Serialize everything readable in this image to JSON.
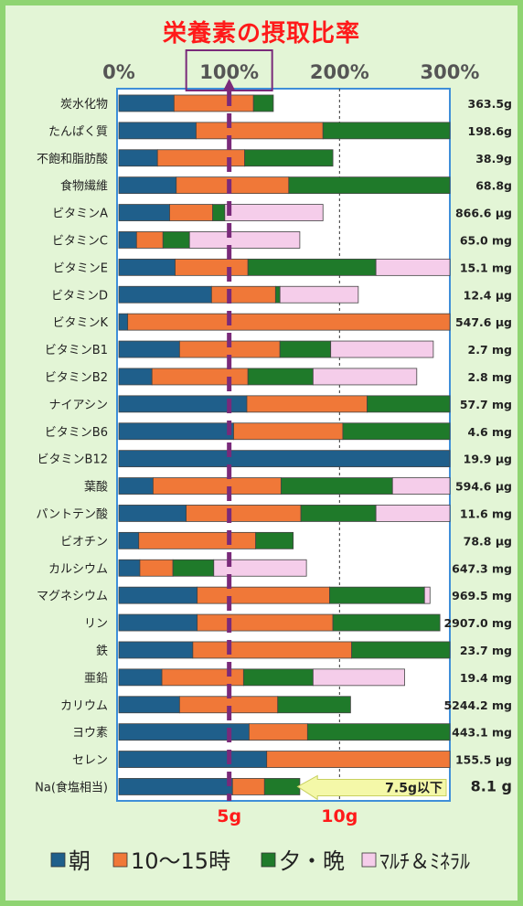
{
  "chart_data": {
    "type": "bar",
    "title": "栄養素の摂取比率",
    "x_ticks": [
      "0%",
      "100%",
      "200%",
      "300%"
    ],
    "xlim": [
      0,
      300
    ],
    "highlight_tick": "100%",
    "series": [
      {
        "name": "朝",
        "color": "#1f5f8b"
      },
      {
        "name": "10～15時",
        "color": "#f07838"
      },
      {
        "name": "夕・晩",
        "color": "#1f7a2a"
      },
      {
        "name": "ﾏﾙﾁ＆ﾐﾈﾗﾙ",
        "color": "#f5cdea"
      }
    ],
    "categories": [
      {
        "label": "炭水化物",
        "amount": "363.5g",
        "values": [
          50,
          72,
          18,
          0
        ]
      },
      {
        "label": "たんぱく質",
        "amount": "198.6g",
        "values": [
          70,
          115,
          115,
          0
        ]
      },
      {
        "label": "不飽和脂肪酸",
        "amount": "38.9g",
        "values": [
          35,
          79,
          80,
          0
        ]
      },
      {
        "label": "食物繊維",
        "amount": "68.8g",
        "values": [
          52,
          102,
          146,
          0
        ]
      },
      {
        "label": "ビタミンA",
        "amount": "866.6 μg",
        "values": [
          46,
          39,
          11,
          89
        ]
      },
      {
        "label": "ビタミンC",
        "amount": "65.0 mg",
        "values": [
          16,
          24,
          24,
          100
        ]
      },
      {
        "label": "ビタミンE",
        "amount": "15.1 mg",
        "values": [
          51,
          66,
          116,
          67
        ]
      },
      {
        "label": "ビタミンD",
        "amount": "12.4 μg",
        "values": [
          84,
          58,
          4,
          71
        ]
      },
      {
        "label": "ビタミンK",
        "amount": "547.6 μg",
        "values": [
          8,
          292,
          0,
          0
        ]
      },
      {
        "label": "ビタミンB1",
        "amount": "2.7 mg",
        "values": [
          55,
          91,
          46,
          93
        ]
      },
      {
        "label": "ビタミンB2",
        "amount": "2.8 mg",
        "values": [
          30,
          87,
          59,
          94
        ]
      },
      {
        "label": "ナイアシン",
        "amount": "57.7 mg",
        "values": [
          116,
          109,
          75,
          0
        ]
      },
      {
        "label": "ビタミンB6",
        "amount": "4.6 mg",
        "values": [
          104,
          99,
          97,
          0
        ]
      },
      {
        "label": "ビタミンB12",
        "amount": "19.9 μg",
        "values": [
          300,
          0,
          0,
          0
        ]
      },
      {
        "label": "葉酸",
        "amount": "594.6 μg",
        "values": [
          31,
          116,
          101,
          52
        ]
      },
      {
        "label": "パントテン酸",
        "amount": "11.6 mg",
        "values": [
          61,
          104,
          68,
          67
        ]
      },
      {
        "label": "ビオチン",
        "amount": "78.8 μg",
        "values": [
          18,
          106,
          34,
          0
        ]
      },
      {
        "label": "カルシウム",
        "amount": "647.3 mg",
        "values": [
          19,
          30,
          37,
          84
        ]
      },
      {
        "label": "マグネシウム",
        "amount": "969.5 mg",
        "values": [
          71,
          120,
          86,
          5
        ]
      },
      {
        "label": "リン",
        "amount": "2907.0 mg",
        "values": [
          71,
          123,
          97,
          0
        ]
      },
      {
        "label": "鉄",
        "amount": "23.7 mg",
        "values": [
          67,
          144,
          89,
          0
        ]
      },
      {
        "label": "亜鉛",
        "amount": "19.4 mg",
        "values": [
          39,
          74,
          63,
          83
        ]
      },
      {
        "label": "カリウム",
        "amount": "5244.2 mg",
        "values": [
          55,
          89,
          66,
          0
        ]
      },
      {
        "label": "ヨウ素",
        "amount": "443.1 mg",
        "values": [
          118,
          53,
          129,
          0
        ]
      },
      {
        "label": "セレン",
        "amount": "155.5 μg",
        "values": [
          134,
          166,
          0,
          0
        ]
      },
      {
        "label": "Na(食塩相当)",
        "amount": "8.1 g",
        "values": [
          103,
          29,
          32,
          0
        ]
      }
    ],
    "salt_axis": {
      "labels": [
        "5g",
        "10g"
      ],
      "callout": "7.5g以下"
    }
  }
}
